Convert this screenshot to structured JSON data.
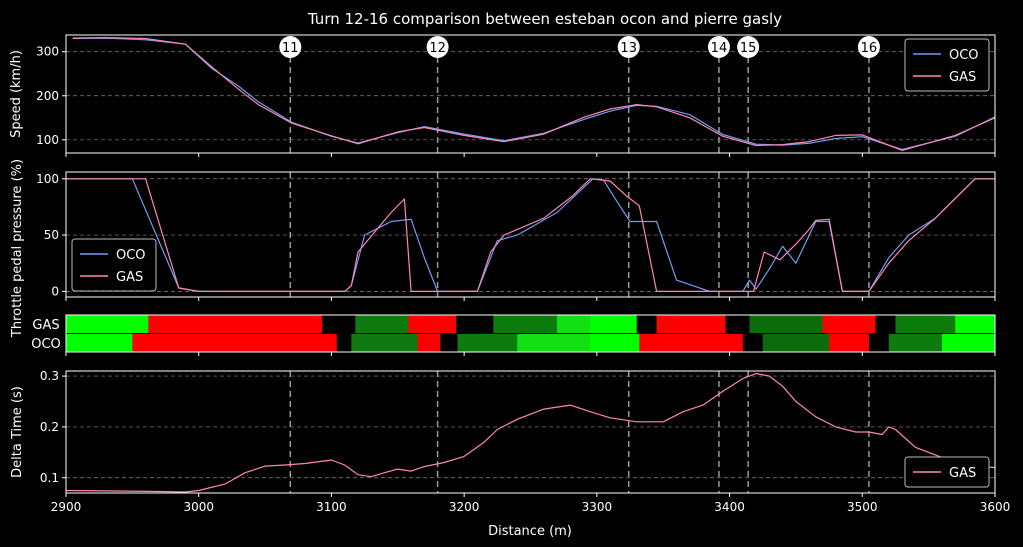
{
  "chart_data": {
    "type": "line",
    "title": "Turn 12-16 comparison between esteban ocon and pierre gasly",
    "xlabel": "Distance (m)",
    "xlim": [
      2900,
      3600
    ],
    "x_ticks": [
      "2900",
      "3000",
      "3100",
      "3200",
      "3300",
      "3400",
      "3500",
      "3600"
    ],
    "x_tick_values": [
      2900,
      3000,
      3100,
      3200,
      3300,
      3400,
      3500,
      3600
    ],
    "colors": {
      "OCO": "#6f9ef0",
      "GAS": "#ff85b8",
      "background": "#000000",
      "grid": "#bfbfbf",
      "turn_line": "#9a9a9a"
    },
    "turns": [
      {
        "label": "11",
        "x": 3069
      },
      {
        "label": "12",
        "x": 3180
      },
      {
        "label": "13",
        "x": 3324
      },
      {
        "label": "14",
        "x": 3392
      },
      {
        "label": "15",
        "x": 3414
      },
      {
        "label": "16",
        "x": 3505
      }
    ],
    "speed": {
      "ylabel": "Speed (km/h)",
      "ylim": [
        70,
        338
      ],
      "y_ticks": [
        "100",
        "200",
        "300"
      ],
      "y_tick_values": [
        100,
        200,
        300
      ],
      "legend_position": "top-right",
      "series": [
        {
          "name": "OCO",
          "x": [
            2905,
            2930,
            2960,
            2990,
            3010,
            3030,
            3045,
            3070,
            3100,
            3120,
            3150,
            3170,
            3200,
            3230,
            3260,
            3290,
            3310,
            3330,
            3345,
            3370,
            3395,
            3420,
            3440,
            3460,
            3480,
            3500,
            3530,
            3570,
            3600
          ],
          "values": [
            330,
            331,
            327,
            317,
            262,
            222,
            186,
            140,
            108,
            93,
            116,
            130,
            113,
            98,
            115,
            146,
            165,
            178,
            176,
            157,
            112,
            90,
            88,
            92,
            103,
            107,
            78,
            108,
            152
          ]
        },
        {
          "name": "GAS",
          "x": [
            2905,
            2930,
            2960,
            2990,
            3010,
            3030,
            3045,
            3070,
            3100,
            3120,
            3150,
            3170,
            3200,
            3230,
            3260,
            3290,
            3310,
            3330,
            3345,
            3370,
            3395,
            3420,
            3440,
            3460,
            3480,
            3500,
            3530,
            3570,
            3600
          ],
          "values": [
            331,
            332,
            330,
            317,
            265,
            215,
            180,
            138,
            109,
            91,
            118,
            128,
            110,
            96,
            113,
            151,
            170,
            180,
            175,
            150,
            108,
            87,
            89,
            96,
            110,
            111,
            76,
            110,
            150
          ]
        }
      ]
    },
    "throttle": {
      "ylabel": "Throttle pedal pressure (%)",
      "ylim": [
        -5,
        106
      ],
      "y_ticks": [
        "0",
        "50",
        "100"
      ],
      "y_tick_values": [
        0,
        50,
        100
      ],
      "legend_position": "lower-left",
      "series": [
        {
          "name": "OCO",
          "x": [
            2900,
            2950,
            2985,
            3000,
            3110,
            3115,
            3125,
            3145,
            3160,
            3170,
            3180,
            3190,
            3210,
            3225,
            3240,
            3270,
            3297,
            3305,
            3315,
            3325,
            3345,
            3360,
            3385,
            3400,
            3410,
            3415,
            3420,
            3430,
            3440,
            3450,
            3460,
            3465,
            3475,
            3485,
            3500,
            3505,
            3520,
            3535,
            3555,
            3585,
            3600
          ],
          "values": [
            100,
            100,
            3,
            0,
            0,
            5,
            50,
            62,
            64,
            30,
            0,
            0,
            0,
            45,
            50,
            70,
            100,
            99,
            80,
            62,
            62,
            10,
            0,
            0,
            0,
            10,
            2,
            20,
            40,
            25,
            50,
            62,
            62,
            0,
            0,
            0,
            30,
            50,
            65,
            100,
            100
          ]
        },
        {
          "name": "GAS",
          "x": [
            2900,
            2960,
            2985,
            3000,
            3110,
            3115,
            3120,
            3145,
            3155,
            3160,
            3168,
            3180,
            3210,
            3220,
            3230,
            3260,
            3282,
            3295,
            3310,
            3322,
            3332,
            3345,
            3400,
            3410,
            3418,
            3426,
            3438,
            3450,
            3460,
            3465,
            3475,
            3485,
            3500,
            3505,
            3520,
            3535,
            3555,
            3585,
            3600
          ],
          "values": [
            100,
            100,
            3,
            0,
            0,
            5,
            35,
            70,
            82,
            0,
            0,
            0,
            0,
            35,
            50,
            65,
            85,
            100,
            98,
            85,
            76,
            0,
            0,
            0,
            0,
            35,
            28,
            42,
            55,
            63,
            64,
            0,
            0,
            0,
            25,
            45,
            65,
            100,
            100
          ]
        }
      ]
    },
    "brake_strips": {
      "labels": [
        "GAS",
        "OCO"
      ],
      "rows": [
        {
          "name": "GAS",
          "segments": [
            [
              2900,
              2962,
              "#00ff00"
            ],
            [
              2962,
              3093,
              "#ff0000"
            ],
            [
              3093,
              3118,
              "#000000"
            ],
            [
              3118,
              3158,
              "#0f7a0f"
            ],
            [
              3158,
              3194,
              "#ff0000"
            ],
            [
              3194,
              3222,
              "#000000"
            ],
            [
              3222,
              3270,
              "#0c7c0c"
            ],
            [
              3270,
              3295,
              "#13e013"
            ],
            [
              3295,
              3330,
              "#00ff00"
            ],
            [
              3330,
              3345,
              "#000000"
            ],
            [
              3345,
              3397,
              "#ff0000"
            ],
            [
              3397,
              3415,
              "#000000"
            ],
            [
              3415,
              3470,
              "#0a6c0a"
            ],
            [
              3470,
              3510,
              "#ff0000"
            ],
            [
              3510,
              3525,
              "#000000"
            ],
            [
              3525,
              3570,
              "#0c7c0c"
            ],
            [
              3570,
              3600,
              "#00ff00"
            ]
          ]
        },
        {
          "name": "OCO",
          "segments": [
            [
              2900,
              2950,
              "#00ff00"
            ],
            [
              2950,
              3104,
              "#ff0000"
            ],
            [
              3104,
              3115,
              "#000000"
            ],
            [
              3115,
              3165,
              "#0f7a0f"
            ],
            [
              3165,
              3182,
              "#ff0000"
            ],
            [
              3182,
              3195,
              "#000000"
            ],
            [
              3195,
              3240,
              "#0c7c0c"
            ],
            [
              3240,
              3295,
              "#13e013"
            ],
            [
              3295,
              3332,
              "#00ff00"
            ],
            [
              3332,
              3410,
              "#ff0000"
            ],
            [
              3410,
              3425,
              "#000000"
            ],
            [
              3425,
              3475,
              "#0a6c0a"
            ],
            [
              3475,
              3505,
              "#ff0000"
            ],
            [
              3505,
              3520,
              "#000000"
            ],
            [
              3520,
              3560,
              "#0c7c0c"
            ],
            [
              3560,
              3600,
              "#00ff00"
            ]
          ]
        }
      ]
    },
    "delta": {
      "ylabel": "Delta Time (s)",
      "ylim": [
        0.07,
        0.31
      ],
      "y_ticks": [
        "0.1",
        "0.2",
        "0.3"
      ],
      "y_tick_values": [
        0.1,
        0.2,
        0.3
      ],
      "legend_position": "lower-right",
      "series": [
        {
          "name": "GAS",
          "x": [
            2900,
            2940,
            2970,
            2990,
            3000,
            3020,
            3035,
            3050,
            3065,
            3080,
            3100,
            3110,
            3120,
            3130,
            3140,
            3150,
            3160,
            3170,
            3185,
            3200,
            3215,
            3225,
            3240,
            3260,
            3280,
            3295,
            3310,
            3330,
            3350,
            3365,
            3380,
            3395,
            3410,
            3420,
            3430,
            3440,
            3450,
            3465,
            3480,
            3495,
            3505,
            3515,
            3520,
            3525,
            3540,
            3560,
            3580,
            3600
          ],
          "values": [
            0.075,
            0.074,
            0.073,
            0.072,
            0.075,
            0.088,
            0.11,
            0.123,
            0.125,
            0.128,
            0.135,
            0.125,
            0.106,
            0.102,
            0.11,
            0.117,
            0.113,
            0.122,
            0.13,
            0.142,
            0.17,
            0.195,
            0.215,
            0.235,
            0.243,
            0.23,
            0.218,
            0.21,
            0.21,
            0.23,
            0.243,
            0.27,
            0.295,
            0.305,
            0.3,
            0.28,
            0.25,
            0.22,
            0.2,
            0.19,
            0.19,
            0.185,
            0.2,
            0.195,
            0.16,
            0.14,
            0.125,
            0.12
          ]
        }
      ]
    }
  }
}
